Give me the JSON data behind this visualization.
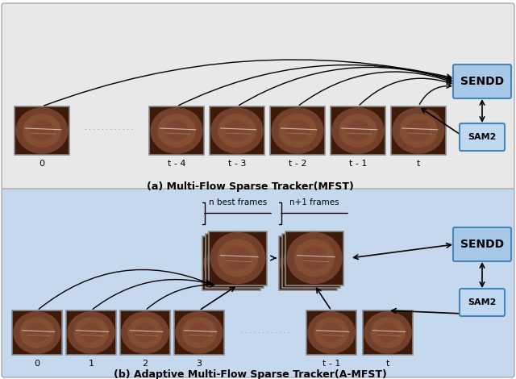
{
  "fig_width": 6.4,
  "fig_height": 4.7,
  "dpi": 100,
  "bg_top_color": "#e8e8e8",
  "bg_bottom_color": "#c5d8ee",
  "sendd_face": "#a8c8e8",
  "sendd_edge": "#4488bb",
  "sam2_face": "#c0d8f0",
  "sam2_edge": "#4488bb",
  "frame_face": "#5a3020",
  "frame_edge": "#888888",
  "title_top": "(a) Multi-Flow Sparse Tracker(MFST)",
  "title_bottom": "(b) Adaptive Multi-Flow Sparse Tracker(A-MFST)",
  "labels_top": [
    "0",
    "t - 4",
    "t - 3",
    "t - 2",
    "t - 1",
    "t"
  ],
  "labels_bottom": [
    "0",
    "1",
    "2",
    "3",
    "t - 1",
    "t"
  ],
  "nbest_label": "n best frames",
  "np1_label": "n+1 frames"
}
